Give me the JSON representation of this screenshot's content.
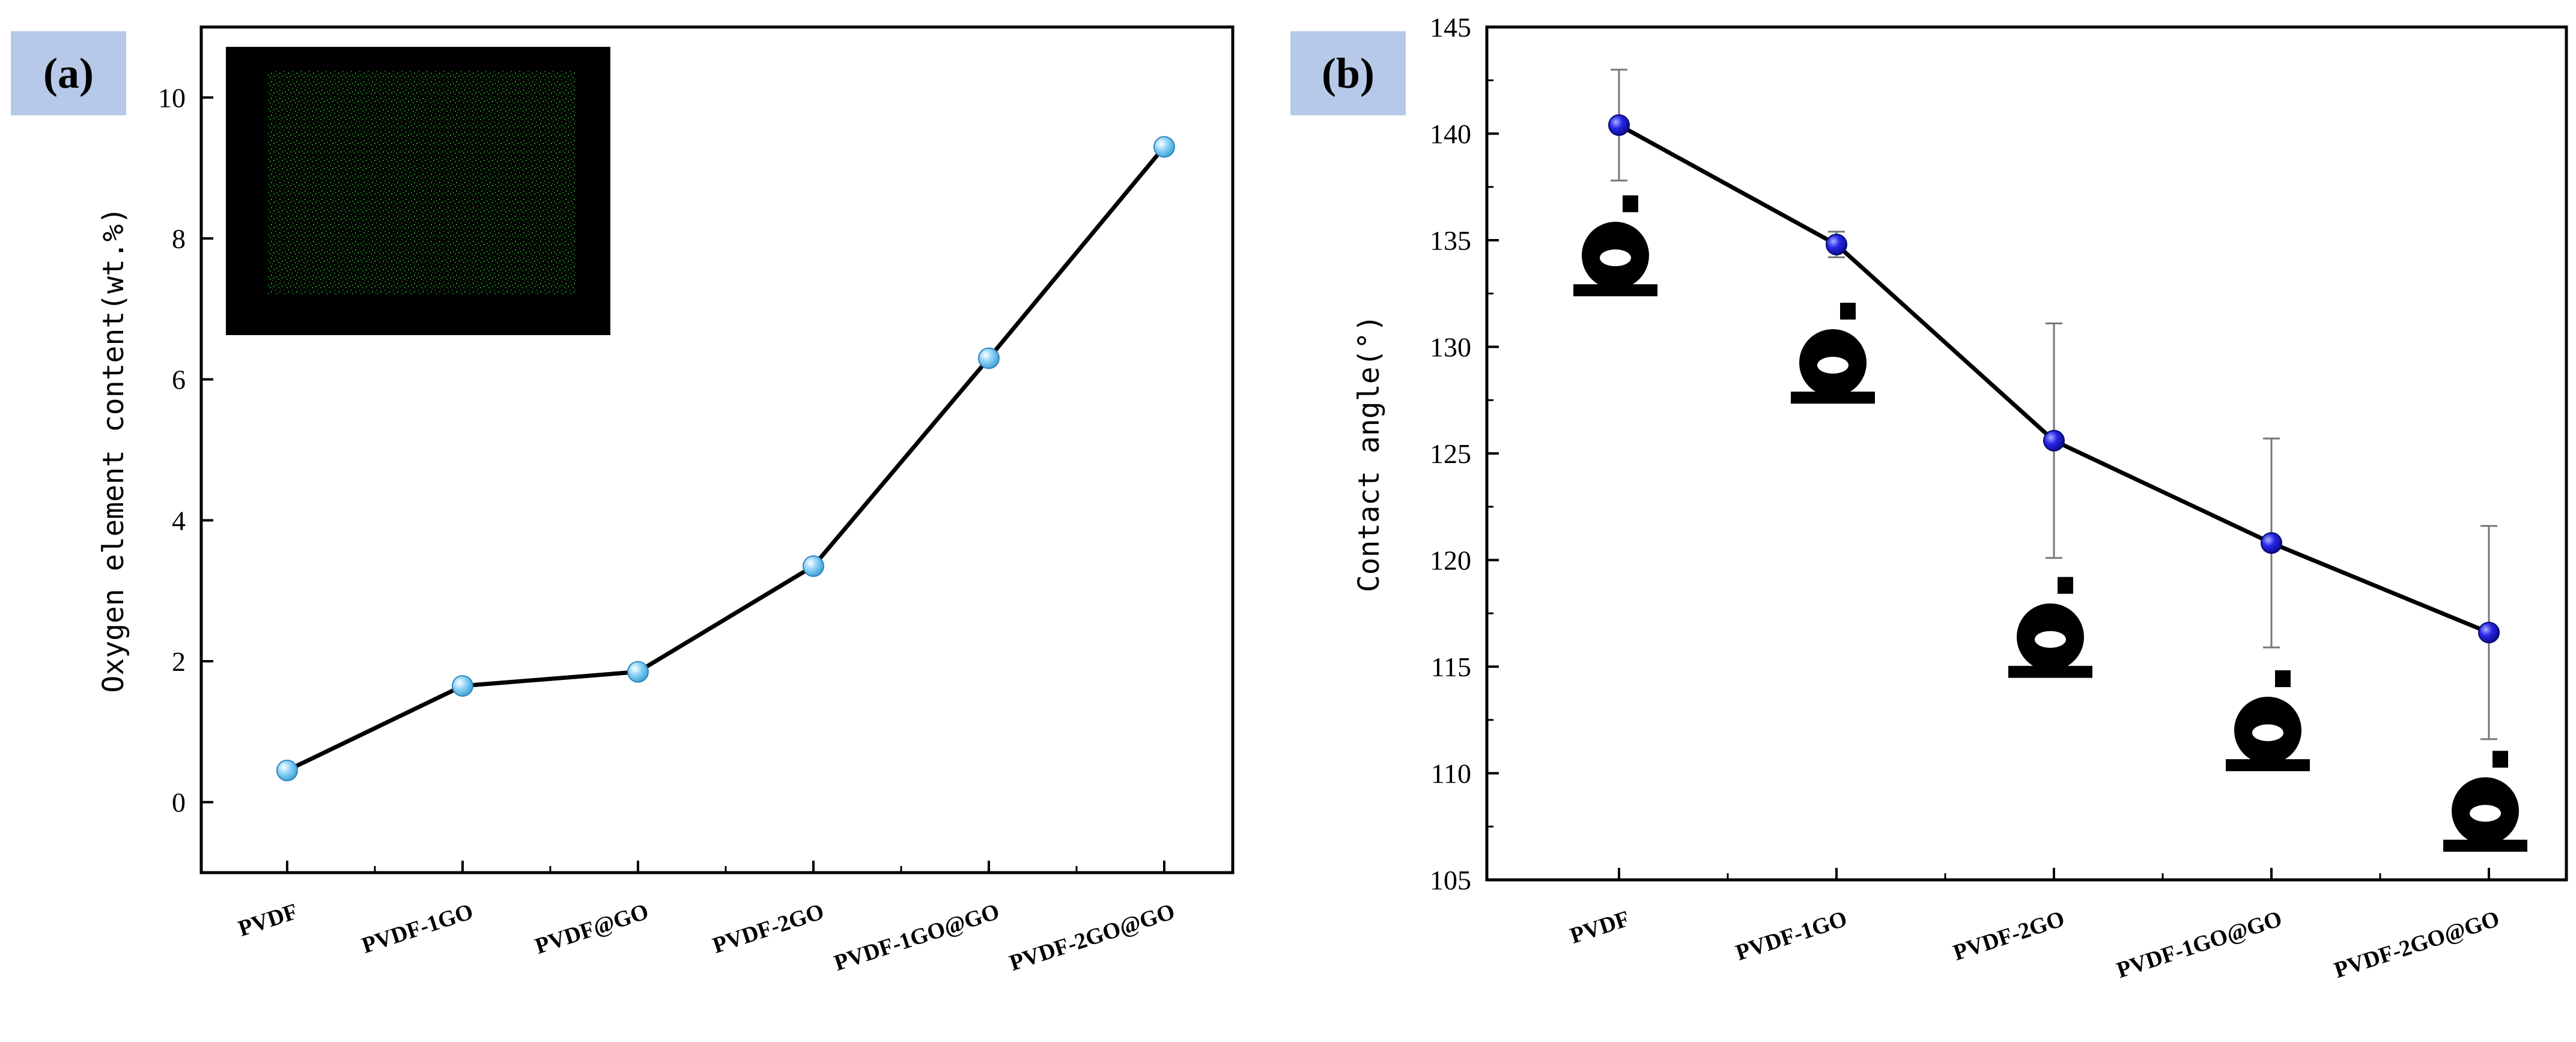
{
  "panel_a": {
    "tag": "(a)",
    "chart_data": {
      "type": "line",
      "categories": [
        "PVDF",
        "PVDF-1GO",
        "PVDF@GO",
        "PVDF-2GO",
        "PVDF-1GO@GO",
        "PVDF-2GO@GO"
      ],
      "series": [
        {
          "values": [
            0.45,
            1.65,
            1.85,
            3.35,
            6.3,
            9.3
          ]
        }
      ],
      "title": "",
      "xlabel": "",
      "ylabel": "Oxygen element content(wt.%)",
      "ylim": [
        -1,
        11
      ],
      "yticks": [
        0,
        2,
        4,
        6,
        8,
        10
      ],
      "marker_color": "#67c0ec",
      "line_color": "#000000",
      "grid": false,
      "inset": "EDS oxygen element mapping image"
    }
  },
  "panel_b": {
    "tag": "(b)",
    "chart_data": {
      "type": "line",
      "categories": [
        "PVDF",
        "PVDF-1GO",
        "PVDF-2GO",
        "PVDF-1GO@GO",
        "PVDF-2GO@GO"
      ],
      "series": [
        {
          "values": [
            140.4,
            134.8,
            125.6,
            120.8,
            116.6
          ],
          "error": [
            2.6,
            0.6,
            5.5,
            4.9,
            5.0
          ]
        }
      ],
      "title": "",
      "xlabel": "",
      "ylabel": "Contact angle(°)",
      "ylim": [
        105,
        145
      ],
      "yticks": [
        105,
        110,
        115,
        120,
        125,
        130,
        135,
        140,
        145
      ],
      "marker_color": "#1a1ad6",
      "line_color": "#000000",
      "grid": false,
      "insets": "water droplet contact angle images"
    }
  }
}
